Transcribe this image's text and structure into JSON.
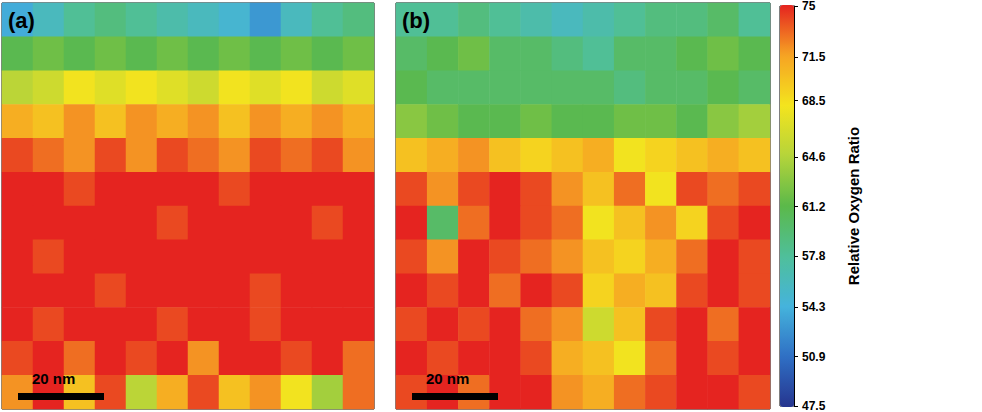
{
  "chart_data": {
    "type": "heatmap",
    "tick_labels": false,
    "panels": [
      {
        "title": "(a)",
        "annotations": [
          "20 nm"
        ],
        "cells": [
          [
            54,
            56,
            58,
            59,
            58,
            57,
            56,
            55,
            53,
            56,
            58,
            59
          ],
          [
            61,
            62,
            61,
            62,
            61,
            62,
            61,
            62,
            61,
            62,
            61,
            62
          ],
          [
            65,
            66,
            68,
            67,
            68,
            67,
            66,
            68,
            67,
            68,
            66,
            67
          ],
          [
            71,
            70,
            72,
            70,
            72,
            71,
            72,
            70,
            72,
            71,
            72,
            71
          ],
          [
            74,
            73,
            72,
            74,
            72,
            74,
            73,
            72,
            74,
            73,
            74,
            72
          ],
          [
            75,
            75,
            74,
            75,
            75,
            75,
            75,
            74,
            75,
            75,
            75,
            75
          ],
          [
            75,
            75,
            75,
            75,
            75,
            74,
            75,
            75,
            75,
            75,
            74,
            75
          ],
          [
            75,
            74,
            75,
            75,
            75,
            75,
            75,
            75,
            75,
            75,
            75,
            75
          ],
          [
            75,
            75,
            75,
            74,
            75,
            75,
            75,
            75,
            74,
            75,
            75,
            75
          ],
          [
            75,
            74,
            75,
            75,
            75,
            74,
            75,
            75,
            74,
            75,
            75,
            75
          ],
          [
            74,
            75,
            73,
            75,
            74,
            75,
            72,
            75,
            75,
            74,
            75,
            73
          ],
          [
            72,
            75,
            70,
            74,
            65,
            71,
            74,
            70,
            72,
            68,
            64,
            73
          ]
        ]
      },
      {
        "title": "(b)",
        "annotations": [
          "20 nm"
        ],
        "cells": [
          [
            58,
            58,
            59,
            58,
            57,
            56,
            57,
            58,
            59,
            59,
            60,
            58
          ],
          [
            60,
            61,
            62,
            60,
            60,
            59,
            58,
            60,
            60,
            61,
            62,
            61
          ],
          [
            61,
            60,
            60,
            60,
            60,
            60,
            60,
            59,
            60,
            60,
            61,
            60
          ],
          [
            63,
            62,
            61,
            61,
            62,
            61,
            61,
            62,
            62,
            61,
            63,
            64
          ],
          [
            70,
            71,
            72,
            70,
            69,
            70,
            71,
            68,
            69,
            70,
            71,
            70
          ],
          [
            74,
            72,
            74,
            75,
            74,
            72,
            70,
            73,
            68,
            74,
            73,
            74
          ],
          [
            75,
            60,
            73,
            75,
            74,
            73,
            68,
            70,
            72,
            69,
            74,
            75
          ],
          [
            74,
            72,
            75,
            74,
            73,
            72,
            70,
            69,
            71,
            73,
            75,
            74
          ],
          [
            75,
            74,
            75,
            73,
            75,
            74,
            69,
            71,
            70,
            74,
            75,
            74
          ],
          [
            74,
            75,
            74,
            75,
            73,
            72,
            66,
            70,
            74,
            75,
            73,
            75
          ],
          [
            75,
            74,
            75,
            75,
            74,
            71,
            70,
            68,
            73,
            75,
            74,
            75
          ],
          [
            74,
            75,
            73,
            75,
            75,
            72,
            71,
            73,
            74,
            75,
            75,
            74
          ]
        ]
      }
    ],
    "colorbar": {
      "label": "Relative Oxygen Ratio",
      "range": [
        47.5,
        75
      ],
      "ticks": [
        47.5,
        50.9,
        54.3,
        57.8,
        61.2,
        64.6,
        68.5,
        71.5,
        75
      ],
      "colors": [
        "#26358f",
        "#2f6fc4",
        "#45b3dc",
        "#4fbf9a",
        "#5bb94a",
        "#b5d43a",
        "#f4e41e",
        "#f6a323",
        "#e52420"
      ]
    }
  }
}
